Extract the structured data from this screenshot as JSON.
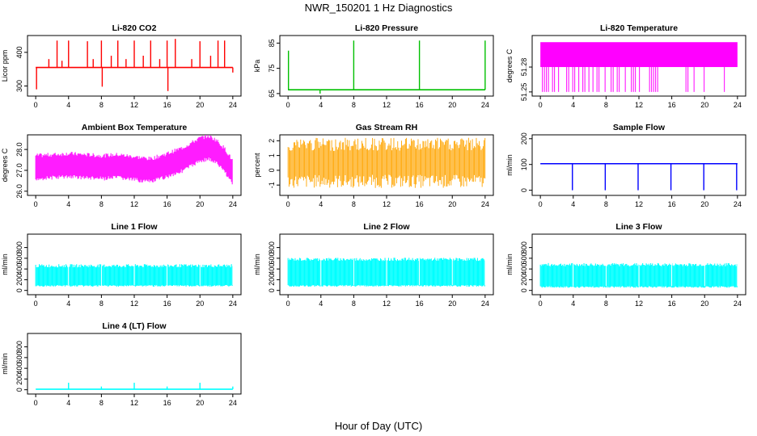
{
  "figure": {
    "title": "NWR_150201  1 Hz Diagnostics",
    "xlabel": "Hour of Day (UTC)"
  },
  "chart_data": [
    {
      "type": "line",
      "title": "Li-820 CO2",
      "ylabel": "Licor ppm",
      "color": "#ff0000",
      "xlim": [
        -1,
        25
      ],
      "ylim": [
        270,
        450
      ],
      "xticks": [
        "0",
        "4",
        "8",
        "12",
        "16",
        "20",
        "24"
      ],
      "yticks": [
        "300",
        "400"
      ],
      "series": [
        {
          "x": [
            0,
            0.1,
            0.2,
            1.6,
            2.6,
            3.2,
            4.0,
            6.3,
            7.0,
            8.0,
            8.1,
            9.2,
            10.0,
            11.0,
            12.0,
            13.1,
            14.0,
            15.1,
            16.0,
            16.1,
            17.0,
            19.0,
            20.0,
            21.3,
            22.2,
            23.0,
            24.0
          ],
          "y": [
            355,
            290,
            355,
            380,
            435,
            375,
            435,
            433,
            380,
            435,
            298,
            390,
            435,
            380,
            435,
            390,
            435,
            380,
            435,
            285,
            440,
            380,
            433,
            390,
            435,
            435,
            340
          ],
          "baseline": 355
        }
      ]
    },
    {
      "type": "line",
      "title": "Li-820 Pressure",
      "ylabel": "kPa",
      "color": "#00c000",
      "xlim": [
        -1,
        25
      ],
      "ylim": [
        64,
        88
      ],
      "xticks": [
        "0",
        "4",
        "8",
        "12",
        "16",
        "20",
        "24"
      ],
      "yticks": [
        "65",
        "75",
        "85"
      ],
      "series": [
        {
          "x": [
            0.05,
            3.9,
            8.0,
            16.0,
            24.0
          ],
          "y": [
            82,
            65,
            86,
            86,
            86
          ],
          "baseline": 66.5
        }
      ]
    },
    {
      "type": "line",
      "title": "Li-820 Temperature",
      "ylabel": "degrees C",
      "color": "#ff00ff",
      "xlim": [
        -1,
        25
      ],
      "ylim": [
        51.245,
        51.318
      ],
      "xticks": [
        "0",
        "4",
        "8",
        "12",
        "16",
        "20",
        "24"
      ],
      "yticks": [
        "51.25",
        "51.28"
      ],
      "series": [
        {
          "x": [
            0,
            24
          ],
          "y": [
            51.31,
            51.28
          ],
          "levels": [
            51.25,
            51.28,
            51.31
          ]
        }
      ]
    },
    {
      "type": "line",
      "title": "Ambient Box Temperature",
      "ylabel": "degrees C",
      "color": "#ff00ff",
      "xlim": [
        -1,
        25
      ],
      "ylim": [
        25.8,
        28.7
      ],
      "xticks": [
        "0",
        "4",
        "8",
        "12",
        "16",
        "20",
        "24"
      ],
      "yticks": [
        "26.0",
        "27.0",
        "28.0"
      ],
      "series": [
        {
          "x": [
            0,
            2,
            4,
            6,
            8,
            10,
            12,
            14,
            16,
            18,
            20,
            21,
            22,
            23,
            24
          ],
          "y": [
            27.15,
            27.2,
            27.25,
            27.2,
            27.15,
            27.2,
            27.1,
            27.0,
            27.25,
            27.55,
            28.0,
            28.1,
            27.9,
            27.5,
            26.9
          ]
        }
      ]
    },
    {
      "type": "line",
      "title": "Gas Stream RH",
      "ylabel": "percent",
      "color": "#ffa500",
      "xlim": [
        -1,
        25
      ],
      "ylim": [
        -1.7,
        2.4
      ],
      "xticks": [
        "0",
        "4",
        "8",
        "12",
        "16",
        "20",
        "24"
      ],
      "yticks": [
        "-1",
        "0",
        "1",
        "2"
      ],
      "series": [
        {
          "x": [
            0,
            24
          ],
          "y": [
            0.5,
            0.4
          ],
          "range": [
            -1.2,
            2.2
          ]
        }
      ]
    },
    {
      "type": "line",
      "title": "Sample Flow",
      "ylabel": "ml/min",
      "color": "#0000ff",
      "xlim": [
        -1,
        25
      ],
      "ylim": [
        -20,
        215
      ],
      "xticks": [
        "0",
        "4",
        "8",
        "12",
        "16",
        "20",
        "24"
      ],
      "yticks": [
        "0",
        "100",
        "200"
      ],
      "series": [
        {
          "x": [
            3.9,
            7.9,
            11.9,
            15.9,
            19.9,
            23.9
          ],
          "y": [
            0,
            0,
            0,
            0,
            0,
            0
          ],
          "baseline": 103
        }
      ]
    },
    {
      "type": "line",
      "title": "Line 1 Flow",
      "ylabel": "ml/min",
      "color": "#00ffff",
      "xlim": [
        -1,
        25
      ],
      "ylim": [
        -80,
        1050
      ],
      "xticks": [
        "0",
        "4",
        "8",
        "12",
        "16",
        "20",
        "24"
      ],
      "yticks": [
        "0",
        "200",
        "400",
        "600",
        "800"
      ],
      "series": [
        {
          "x": [
            0,
            24
          ],
          "y": [
            430,
            430
          ],
          "low": 100
        }
      ]
    },
    {
      "type": "line",
      "title": "Line 2 Flow",
      "ylabel": "ml/min",
      "color": "#00ffff",
      "xlim": [
        -1,
        25
      ],
      "ylim": [
        -80,
        1050
      ],
      "xticks": [
        "0",
        "4",
        "8",
        "12",
        "16",
        "20",
        "24"
      ],
      "yticks": [
        "0",
        "200",
        "400",
        "600",
        "800"
      ],
      "series": [
        {
          "x": [
            0,
            24
          ],
          "y": [
            550,
            550
          ],
          "low": 100
        }
      ]
    },
    {
      "type": "line",
      "title": "Line 3 Flow",
      "ylabel": "ml/min",
      "color": "#00ffff",
      "xlim": [
        -1,
        25
      ],
      "ylim": [
        -80,
        1050
      ],
      "xticks": [
        "0",
        "4",
        "8",
        "12",
        "16",
        "20",
        "24"
      ],
      "yticks": [
        "0",
        "200",
        "400",
        "600",
        "800"
      ],
      "series": [
        {
          "x": [
            0,
            24
          ],
          "y": [
            450,
            450
          ],
          "low": 80
        }
      ]
    },
    {
      "type": "line",
      "title": "Line 4 (LT) Flow",
      "ylabel": "ml/min",
      "color": "#00ffff",
      "xlim": [
        -1,
        25
      ],
      "ylim": [
        -80,
        1050
      ],
      "xticks": [
        "0",
        "4",
        "8",
        "12",
        "16",
        "20",
        "24"
      ],
      "yticks": [
        "0",
        "200",
        "400",
        "600",
        "800"
      ],
      "series": [
        {
          "x": [
            4.0,
            8.0,
            12.0,
            16.0,
            20.0,
            24.0
          ],
          "y": [
            130,
            60,
            130,
            60,
            130,
            60
          ],
          "baseline": 10
        }
      ]
    }
  ]
}
